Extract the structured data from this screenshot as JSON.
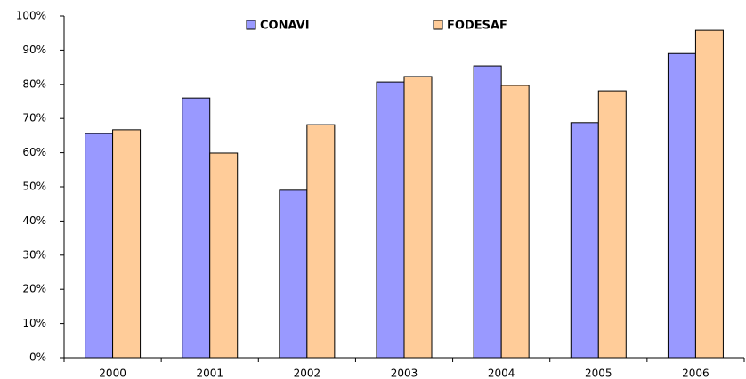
{
  "chart_data": {
    "type": "bar",
    "categories": [
      "2000",
      "2001",
      "2002",
      "2003",
      "2004",
      "2005",
      "2006"
    ],
    "series": [
      {
        "name": "CONAVI",
        "color": "#9999ff",
        "values": [
          65.6,
          76,
          49,
          80.7,
          85.4,
          68.8,
          89
        ]
      },
      {
        "name": "FODESAF",
        "color": "#ffcc99",
        "values": [
          66.7,
          59.9,
          68.2,
          82.3,
          79.7,
          78.1,
          95.8
        ]
      }
    ],
    "ylim": [
      0,
      100
    ],
    "yticks": [
      {
        "value": 0,
        "label": "0%"
      },
      {
        "value": 10,
        "label": "10%"
      },
      {
        "value": 20,
        "label": "20%"
      },
      {
        "value": 30,
        "label": "30%"
      },
      {
        "value": 40,
        "label": "40%"
      },
      {
        "value": 50,
        "label": "50%"
      },
      {
        "value": 60,
        "label": "60%"
      },
      {
        "value": 70,
        "label": "70%"
      },
      {
        "value": 80,
        "label": "80%"
      },
      {
        "value": 90,
        "label": "90%"
      },
      {
        "value": 100,
        "label": "100%"
      }
    ],
    "grid": false
  }
}
